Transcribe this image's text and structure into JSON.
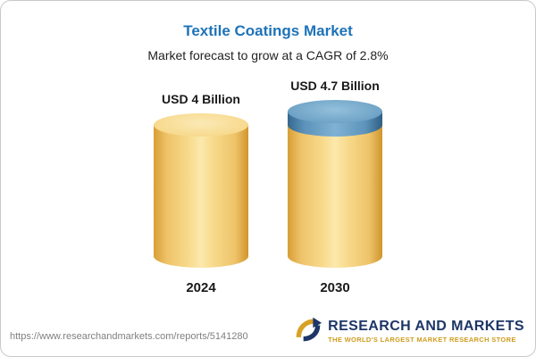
{
  "card": {
    "title": "Textile Coatings Market",
    "subtitle": "Market forecast to grow at a CAGR of 2.8%"
  },
  "chart_data": {
    "type": "bar",
    "variant": "3d-cylinder",
    "title": "Textile Coatings Market",
    "subtitle": "Market forecast to grow at a CAGR of 2.8%",
    "categories": [
      "2024",
      "2030"
    ],
    "values": [
      4,
      4.7
    ],
    "value_labels": [
      "USD 4 Billion",
      "USD 4.7 Billion"
    ],
    "unit": "USD Billion",
    "cagr_percent": 2.8,
    "baseline_segment": 4,
    "growth_segment": 0.7,
    "colors": {
      "base_cylinder": "#F5CE6E",
      "growth_cylinder": "#5B94BD",
      "title_blue": "#1E73B8"
    }
  },
  "footer": {
    "url": "https://www.researchandmarkets.com/reports/5141280",
    "logo_text": "RESEARCH AND MARKETS",
    "logo_tagline": "THE WORLD'S LARGEST MARKET RESEARCH STORE"
  }
}
